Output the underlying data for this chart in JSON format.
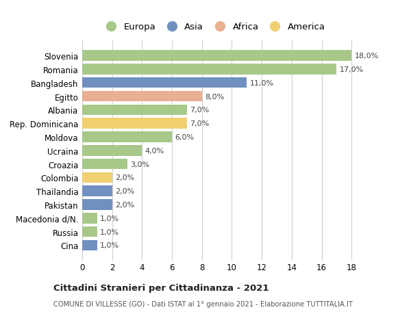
{
  "countries": [
    "Cina",
    "Russia",
    "Macedonia d/N.",
    "Pakistan",
    "Thailandia",
    "Colombia",
    "Croazia",
    "Ucraina",
    "Moldova",
    "Rep. Dominicana",
    "Albania",
    "Egitto",
    "Bangladesh",
    "Romania",
    "Slovenia"
  ],
  "values": [
    1.0,
    1.0,
    1.0,
    2.0,
    2.0,
    2.0,
    3.0,
    4.0,
    6.0,
    7.0,
    7.0,
    8.0,
    11.0,
    17.0,
    18.0
  ],
  "continents": [
    "Asia",
    "Europa",
    "Europa",
    "Asia",
    "Asia",
    "America",
    "Europa",
    "Europa",
    "Europa",
    "America",
    "Europa",
    "Africa",
    "Asia",
    "Europa",
    "Europa"
  ],
  "continent_colors": {
    "Europa": "#a8c88a",
    "Asia": "#7090c0",
    "Africa": "#e8b090",
    "America": "#f0d070"
  },
  "legend_order": [
    "Europa",
    "Asia",
    "Africa",
    "America"
  ],
  "title": "Cittadini Stranieri per Cittadinanza - 2021",
  "subtitle": "COMUNE DI VILLESSE (GO) - Dati ISTAT al 1° gennaio 2021 - Elaborazione TUTTITALIA.IT",
  "xlim": [
    0,
    18
  ],
  "xticks": [
    0,
    2,
    4,
    6,
    8,
    10,
    12,
    14,
    16,
    18
  ],
  "bg_color": "#ffffff",
  "grid_color": "#d0d0d0"
}
